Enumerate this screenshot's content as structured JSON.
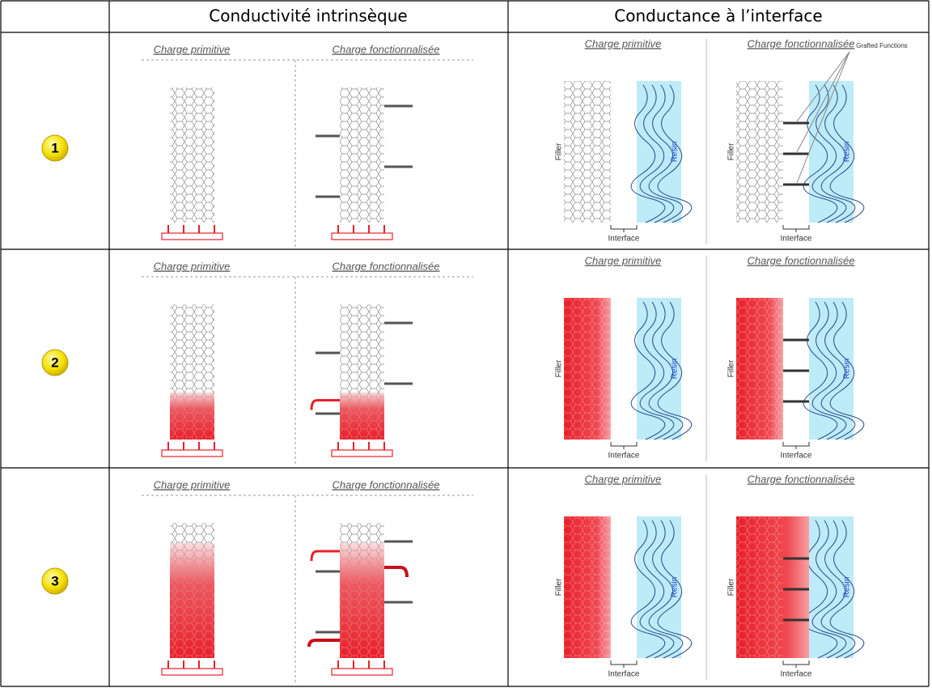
{
  "header": {
    "intrinsic": "Conductivité intrinsèque",
    "interface": "Conductance à l’interface"
  },
  "rows": [
    {
      "label": "1",
      "intrinsic": {
        "primitive": "Charge primitive",
        "functionalized": "Charge fonctionnalisée"
      },
      "interface": [
        {
          "title": "Charge primitive",
          "filler": "Filler",
          "resin": "Resin",
          "interface": "Interface"
        },
        {
          "title": "Charge fonctionnalisée",
          "filler": "Filler",
          "resin": "Resin",
          "interface": "Interface",
          "annotation": "Grafted Functions"
        }
      ]
    },
    {
      "label": "2",
      "intrinsic": {
        "primitive": "Charge primitive",
        "functionalized": "Charge fonctionnalisée"
      },
      "interface": [
        {
          "title": "Charge primitive",
          "filler": "Filler",
          "resin": "Resin",
          "interface": "Interface"
        },
        {
          "title": "Charge fonctionnalisée",
          "filler": "Filler",
          "resin": "Resin",
          "interface": "Interface"
        }
      ]
    },
    {
      "label": "3",
      "intrinsic": {
        "primitive": "Charge primitive",
        "functionalized": "Charge fonctionnalisée"
      },
      "interface": [
        {
          "title": "Charge primitive",
          "filler": "Filler",
          "resin": "Resin",
          "interface": "Interface"
        },
        {
          "title": "Charge fonctionnalisée",
          "filler": "Filler",
          "resin": "Resin",
          "interface": "Interface"
        }
      ]
    }
  ]
}
